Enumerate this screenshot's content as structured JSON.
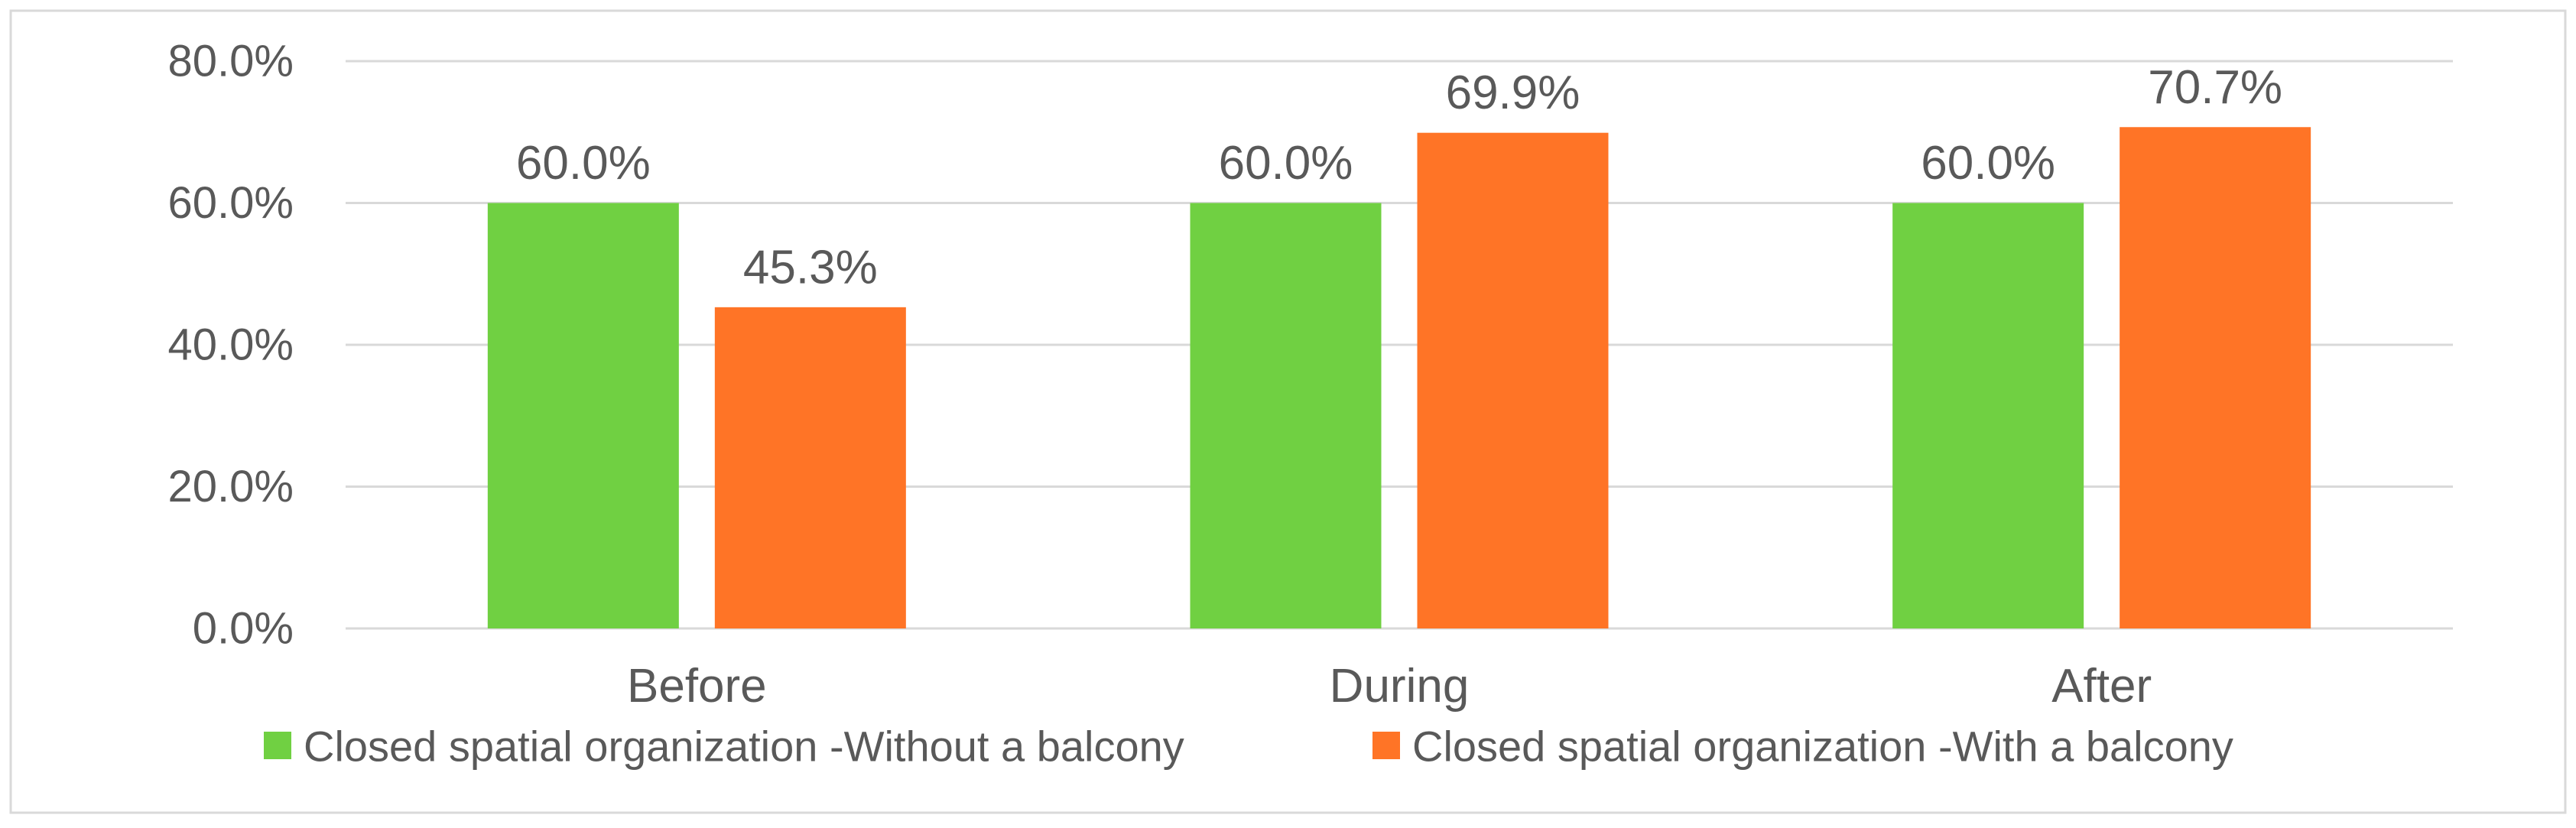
{
  "chart_data": {
    "type": "bar",
    "title": "",
    "xlabel": "",
    "ylabel": "",
    "categories": [
      "Before",
      "During",
      "After"
    ],
    "series": [
      {
        "name": "Closed spatial organization -Without a balcony",
        "color": "#70D042",
        "values": [
          60.0,
          60.0,
          60.0
        ],
        "labels": [
          "60.0%",
          "60.0%",
          "60.0%"
        ]
      },
      {
        "name": "Closed spatial organization -With a balcony",
        "color": "#FF7426",
        "values": [
          45.3,
          69.9,
          70.7
        ],
        "labels": [
          "45.3%",
          "69.9%",
          "70.7%"
        ]
      }
    ],
    "ylim": [
      0,
      80
    ],
    "yticks": [
      0,
      20,
      40,
      60,
      80
    ],
    "ytick_labels": [
      "0.0%",
      "20.0%",
      "40.0%",
      "60.0%",
      "80.0%"
    ],
    "grid": true,
    "gridline_color": "#D9D9D9",
    "border_color": "#D9D9D9",
    "legend": "bottom"
  }
}
